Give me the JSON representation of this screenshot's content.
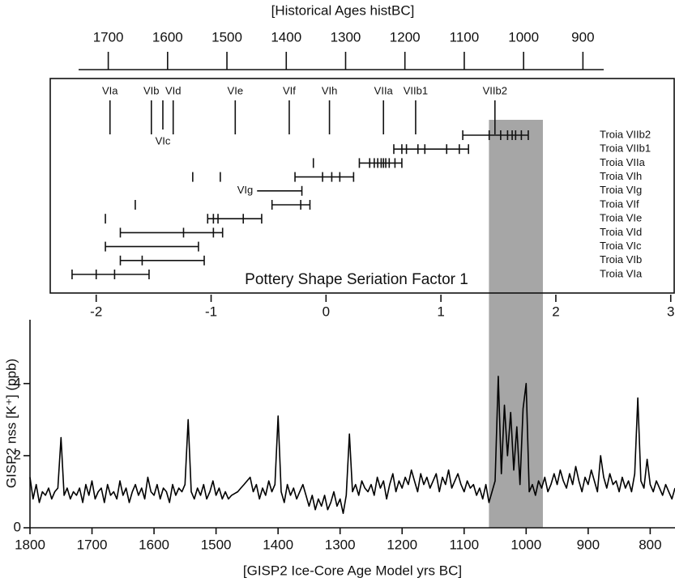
{
  "chart_data": [
    {
      "type": "axis",
      "title": "[Historical Ages histBC]",
      "xlim": [
        1750,
        865
      ],
      "xticks": [
        1700,
        1600,
        1500,
        1400,
        1300,
        1200,
        1100,
        1000,
        900
      ]
    },
    {
      "type": "seriation",
      "xlabel": "Pottery Shape Seriation Factor 1",
      "xlim": [
        -2.4,
        3.03
      ],
      "xticks": [
        -2,
        -1,
        0,
        1,
        2,
        3
      ],
      "phases": [
        {
          "label": "VIa",
          "value": -1.88
        },
        {
          "label": "VIb",
          "value": -1.52
        },
        {
          "label": "VIc",
          "value": -1.42,
          "below": true
        },
        {
          "label": "VId",
          "value": -1.33
        },
        {
          "label": "VIe",
          "value": -0.79
        },
        {
          "label": "VIf",
          "value": -0.32
        },
        {
          "label": "VIh",
          "value": 0.03
        },
        {
          "label": "VIIa",
          "value": 0.5
        },
        {
          "label": "VIIb1",
          "value": 0.78
        },
        {
          "label": "VIIb2",
          "value": 1.47
        }
      ],
      "rows": [
        {
          "name": "Troia VIIb2",
          "range": [
            1.19,
            1.76
          ],
          "samples": [
            1.19,
            1.42,
            1.52,
            1.58,
            1.62,
            1.65,
            1.7,
            1.76
          ]
        },
        {
          "name": "Troia VIIb1",
          "range": [
            0.59,
            1.24
          ],
          "samples": [
            0.59,
            0.66,
            0.7,
            0.8,
            0.86,
            1.05,
            1.16,
            1.24
          ]
        },
        {
          "name": "Troia VIIa",
          "range": [
            0.29,
            0.66
          ],
          "samples": [
            -0.11,
            0.29,
            0.38,
            0.42,
            0.45,
            0.48,
            0.5,
            0.52,
            0.55,
            0.6,
            0.66
          ]
        },
        {
          "name": "Troia VIh",
          "range": [
            -0.27,
            0.24
          ],
          "samples": [
            -1.16,
            -0.92,
            -0.27,
            -0.03,
            0.05,
            0.12,
            0.24
          ]
        },
        {
          "name": "Troia VIg",
          "range": [
            -0.6,
            -0.21
          ],
          "samples": [
            -0.21
          ],
          "range_label": "VIg"
        },
        {
          "name": "Troia VIf",
          "range": [
            -0.47,
            -0.14
          ],
          "samples": [
            -1.66,
            -0.47,
            -0.22,
            -0.14
          ]
        },
        {
          "name": "Troia VIe",
          "range": [
            -1.03,
            -0.56
          ],
          "samples": [
            -1.92,
            -1.03,
            -0.98,
            -0.94,
            -0.72,
            -0.56
          ]
        },
        {
          "name": "Troia VId",
          "range": [
            -1.79,
            -0.9
          ],
          "samples": [
            -1.79,
            -1.24,
            -0.98,
            -0.9
          ]
        },
        {
          "name": "Troia VIc",
          "range": [
            -1.92,
            -1.11
          ],
          "samples": [
            -1.92,
            -1.11
          ]
        },
        {
          "name": "Troia VIb",
          "range": [
            -1.79,
            -1.06
          ],
          "samples": [
            -1.79,
            -1.6,
            -1.06
          ]
        },
        {
          "name": "Troia VIa",
          "range": [
            -2.21,
            -1.54
          ],
          "samples": [
            -2.21,
            -2.0,
            -1.84,
            -1.54
          ]
        }
      ]
    },
    {
      "type": "line",
      "xlabel": "[GISP2 Ice-Core Age Model yrs BC]",
      "ylabel": "GISP2 nss [K⁺] (ppb)",
      "xlim": [
        1800,
        760
      ],
      "ylim": [
        0,
        5.77
      ],
      "xticks": [
        1800,
        1700,
        1600,
        1500,
        1400,
        1300,
        1200,
        1100,
        1000,
        900,
        800
      ],
      "yticks": [
        0,
        2,
        4
      ],
      "highlight": [
        1060,
        973
      ],
      "highlight_color": "#a6a6a6",
      "x": [
        1800,
        1795,
        1790,
        1785,
        1780,
        1775,
        1770,
        1765,
        1760,
        1755,
        1750,
        1745,
        1740,
        1735,
        1730,
        1725,
        1720,
        1715,
        1710,
        1705,
        1700,
        1695,
        1690,
        1685,
        1680,
        1675,
        1670,
        1665,
        1660,
        1655,
        1650,
        1645,
        1640,
        1635,
        1630,
        1625,
        1620,
        1615,
        1610,
        1605,
        1600,
        1595,
        1590,
        1585,
        1580,
        1575,
        1570,
        1565,
        1560,
        1555,
        1550,
        1545,
        1540,
        1535,
        1530,
        1525,
        1520,
        1515,
        1510,
        1505,
        1500,
        1495,
        1490,
        1485,
        1480,
        1475,
        1470,
        1465,
        1460,
        1455,
        1450,
        1445,
        1440,
        1435,
        1430,
        1425,
        1420,
        1415,
        1410,
        1405,
        1400,
        1395,
        1390,
        1385,
        1380,
        1375,
        1370,
        1365,
        1360,
        1355,
        1350,
        1345,
        1340,
        1335,
        1330,
        1325,
        1320,
        1315,
        1310,
        1305,
        1300,
        1295,
        1290,
        1285,
        1280,
        1275,
        1270,
        1265,
        1260,
        1255,
        1250,
        1245,
        1240,
        1235,
        1230,
        1225,
        1220,
        1215,
        1210,
        1205,
        1200,
        1195,
        1190,
        1185,
        1180,
        1175,
        1170,
        1165,
        1160,
        1155,
        1150,
        1145,
        1140,
        1135,
        1130,
        1125,
        1120,
        1115,
        1110,
        1105,
        1100,
        1095,
        1090,
        1085,
        1080,
        1075,
        1070,
        1065,
        1060,
        1055,
        1050,
        1045,
        1040,
        1035,
        1030,
        1025,
        1020,
        1015,
        1010,
        1005,
        1000,
        995,
        990,
        985,
        980,
        975,
        970,
        965,
        960,
        955,
        950,
        945,
        940,
        935,
        930,
        925,
        920,
        915,
        910,
        905,
        900,
        895,
        890,
        885,
        880,
        875,
        870,
        865,
        860,
        855,
        850,
        845,
        840,
        835,
        830,
        825,
        820,
        815,
        810,
        805,
        800,
        795,
        790,
        785,
        780,
        775,
        770,
        765,
        760
      ],
      "series": [
        {
          "color": "#000000",
          "values": [
            1.4,
            0.8,
            1.2,
            0.7,
            1.0,
            0.9,
            1.1,
            0.8,
            1.0,
            1.1,
            2.5,
            0.9,
            1.1,
            0.8,
            1.0,
            0.9,
            1.1,
            0.7,
            1.2,
            0.9,
            1.3,
            0.8,
            1.0,
            1.1,
            0.7,
            1.2,
            0.9,
            1.0,
            0.8,
            1.3,
            0.9,
            1.1,
            0.7,
            1.0,
            1.2,
            0.9,
            1.1,
            0.8,
            1.4,
            1.0,
            0.9,
            1.2,
            0.8,
            1.1,
            1.0,
            0.7,
            1.2,
            0.9,
            1.1,
            1.0,
            1.2,
            3.0,
            1.0,
            0.8,
            1.1,
            0.9,
            1.2,
            0.8,
            1.0,
            1.3,
            0.9,
            1.1,
            0.8,
            1.0,
            0.8,
            0.9,
            0.95,
            1.0,
            1.1,
            1.2,
            1.3,
            1.4,
            1.0,
            1.2,
            0.8,
            1.1,
            0.9,
            1.3,
            1.0,
            1.2,
            3.1,
            1.0,
            0.7,
            1.2,
            0.9,
            1.1,
            0.8,
            1.0,
            1.2,
            0.9,
            0.6,
            0.9,
            0.5,
            0.8,
            0.6,
            0.9,
            0.5,
            0.7,
            1.0,
            0.6,
            0.8,
            0.4,
            0.9,
            2.6,
            1.0,
            1.2,
            0.9,
            1.3,
            1.1,
            1.0,
            1.2,
            0.9,
            1.4,
            1.1,
            1.3,
            0.8,
            1.2,
            1.5,
            1.0,
            1.3,
            1.1,
            1.4,
            1.2,
            1.6,
            1.3,
            1.0,
            1.5,
            1.2,
            1.4,
            1.1,
            1.3,
            1.5,
            1.0,
            1.4,
            1.2,
            1.6,
            1.1,
            1.3,
            1.5,
            1.2,
            1.0,
            1.3,
            1.1,
            1.2,
            0.9,
            1.1,
            0.8,
            1.2,
            0.7,
            1.0,
            1.3,
            4.2,
            1.5,
            3.4,
            2.0,
            3.2,
            1.6,
            2.8,
            1.2,
            3.3,
            4.0,
            1.0,
            1.2,
            0.9,
            1.3,
            1.1,
            1.4,
            1.0,
            1.2,
            1.5,
            1.2,
            1.6,
            1.3,
            1.1,
            1.5,
            1.2,
            1.7,
            1.3,
            1.0,
            1.4,
            1.2,
            1.6,
            1.3,
            1.0,
            2.0,
            1.4,
            1.1,
            1.5,
            1.2,
            1.3,
            1.0,
            1.4,
            1.1,
            1.3,
            1.0,
            1.5,
            3.6,
            1.3,
            1.1,
            1.9,
            1.2,
            1.0,
            1.3,
            1.1,
            0.9,
            1.2,
            1.0,
            0.8,
            1.1
          ]
        }
      ]
    }
  ]
}
